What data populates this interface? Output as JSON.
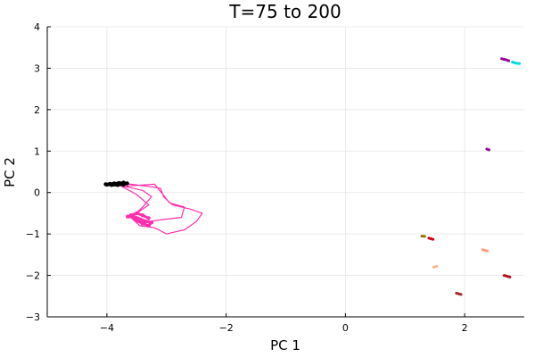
{
  "chart_data": {
    "type": "line",
    "title": "T=75 to 200",
    "xlabel": "PC 1",
    "ylabel": "PC 2",
    "xlim": [
      -5,
      3
    ],
    "ylim": [
      -3,
      4
    ],
    "xticks": [
      -4,
      -2,
      0,
      2
    ],
    "xtick_labels": [
      "−4",
      "−2",
      "0",
      "2"
    ],
    "yticks": [
      -3,
      -2,
      -1,
      0,
      1,
      2,
      3,
      4
    ],
    "ytick_labels": [
      "−3",
      "−2",
      "−1",
      "0",
      "1",
      "2",
      "3",
      "4"
    ],
    "grid": true,
    "legend": "none",
    "series": [
      {
        "color": "#ff2fae",
        "style": "loop",
        "points": [
          [
            -3.9,
            0.2
          ],
          [
            -3.6,
            0.2
          ],
          [
            -3.3,
            0.15
          ],
          [
            -3.1,
            0.1
          ],
          [
            -3.05,
            -0.1
          ],
          [
            -2.9,
            -0.3
          ],
          [
            -2.6,
            -0.4
          ],
          [
            -2.4,
            -0.5
          ],
          [
            -2.5,
            -0.7
          ],
          [
            -2.7,
            -0.9
          ],
          [
            -3.0,
            -1.0
          ],
          [
            -3.2,
            -0.85
          ],
          [
            -3.45,
            -0.8
          ],
          [
            -3.6,
            -0.6
          ],
          [
            -3.3,
            -0.3
          ],
          [
            -3.5,
            -0.05
          ],
          [
            -3.75,
            0.15
          ],
          [
            -3.2,
            0.2
          ],
          [
            -2.95,
            -0.25
          ],
          [
            -2.7,
            -0.35
          ],
          [
            -2.75,
            -0.6
          ],
          [
            -3.05,
            -0.65
          ],
          [
            -3.3,
            -0.7
          ],
          [
            -3.55,
            -0.55
          ],
          [
            -3.4,
            -0.35
          ],
          [
            -3.25,
            -0.1
          ],
          [
            -3.4,
            0.05
          ],
          [
            -3.7,
            0.15
          ]
        ]
      },
      {
        "color": "#ff2fae",
        "style": "cluster",
        "points": [
          [
            -3.65,
            -0.58
          ],
          [
            -3.55,
            -0.6
          ],
          [
            -3.45,
            -0.65
          ],
          [
            -3.35,
            -0.7
          ],
          [
            -3.25,
            -0.72
          ],
          [
            -3.3,
            -0.8
          ],
          [
            -3.4,
            -0.75
          ],
          [
            -3.5,
            -0.68
          ],
          [
            -3.6,
            -0.55
          ],
          [
            -3.5,
            -0.5
          ],
          [
            -3.4,
            -0.55
          ],
          [
            -3.3,
            -0.62
          ]
        ]
      },
      {
        "color": "#000000",
        "style": "cluster",
        "points": [
          [
            -4.02,
            0.2
          ],
          [
            -3.95,
            0.21
          ],
          [
            -3.88,
            0.22
          ],
          [
            -3.8,
            0.23
          ],
          [
            -3.72,
            0.24
          ],
          [
            -3.66,
            0.22
          ],
          [
            -3.72,
            0.19
          ],
          [
            -3.82,
            0.18
          ],
          [
            -3.92,
            0.18
          ],
          [
            -4.0,
            0.19
          ]
        ]
      },
      {
        "color": "#9b009b",
        "style": "trail",
        "points": [
          [
            2.62,
            3.23
          ],
          [
            2.7,
            3.2
          ],
          [
            2.74,
            3.18
          ]
        ]
      },
      {
        "color": "#00dede",
        "style": "trail",
        "points": [
          [
            2.8,
            3.15
          ],
          [
            2.87,
            3.12
          ],
          [
            2.92,
            3.11
          ]
        ]
      },
      {
        "color": "#9b009b",
        "style": "trail",
        "points": [
          [
            2.37,
            1.05
          ],
          [
            2.41,
            1.03
          ]
        ]
      },
      {
        "color": "#8b7a00",
        "style": "trail",
        "points": [
          [
            1.28,
            -1.05
          ],
          [
            1.33,
            -1.06
          ]
        ]
      },
      {
        "color": "#d6001c",
        "style": "trail",
        "points": [
          [
            1.4,
            -1.1
          ],
          [
            1.47,
            -1.13
          ]
        ]
      },
      {
        "color": "#ff9c7a",
        "style": "trail",
        "points": [
          [
            2.3,
            -1.38
          ],
          [
            2.38,
            -1.41
          ]
        ]
      },
      {
        "color": "#ffb38a",
        "style": "trail",
        "points": [
          [
            1.48,
            -1.8
          ],
          [
            1.53,
            -1.78
          ]
        ]
      },
      {
        "color": "#b3121b",
        "style": "trail",
        "points": [
          [
            2.66,
            -2.0
          ],
          [
            2.76,
            -2.04
          ]
        ]
      },
      {
        "color": "#a62a2a",
        "style": "trail",
        "points": [
          [
            1.86,
            -2.43
          ],
          [
            1.94,
            -2.46
          ]
        ]
      }
    ]
  }
}
